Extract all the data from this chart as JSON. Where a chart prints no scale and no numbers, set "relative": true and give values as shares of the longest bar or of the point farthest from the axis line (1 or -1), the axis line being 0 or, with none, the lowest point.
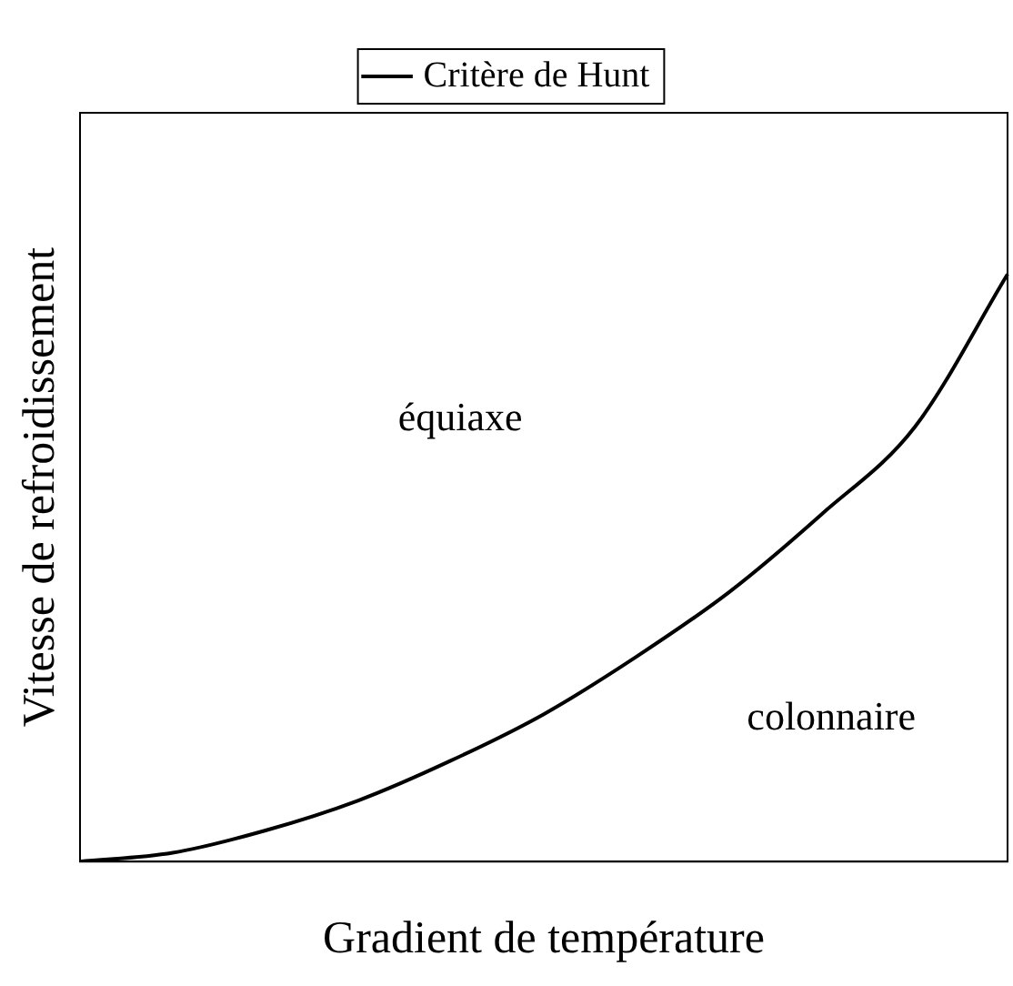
{
  "chart_data": {
    "type": "line",
    "xlabel": "Gradient de température",
    "ylabel": "Vitesse de refroidissement",
    "relative": true,
    "legend": "top",
    "grid": false,
    "marker": "none",
    "line_style": "solid",
    "categories": [
      null,
      null,
      null,
      null,
      null,
      null,
      null,
      null,
      null,
      null,
      null
    ],
    "series": [
      {
        "name": "Critère de Hunt",
        "color": "#000000",
        "values": [
          0,
          0.015,
          0.053,
          0.104,
          0.172,
          0.251,
          0.349,
          0.459,
          0.592,
          0.74,
          1
        ]
      }
    ],
    "annotations": [
      "équiaxe",
      "colonnaire"
    ]
  }
}
